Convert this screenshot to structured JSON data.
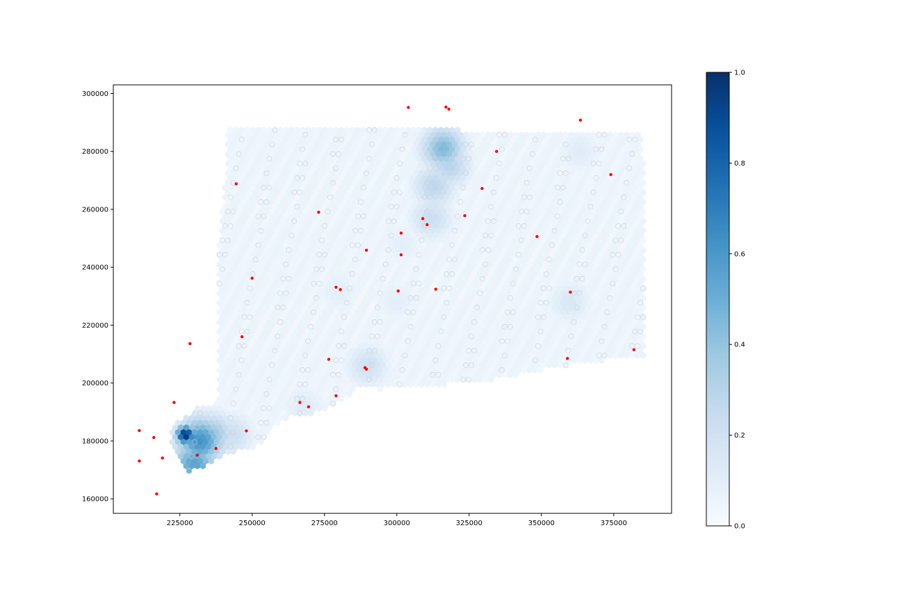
{
  "chart_data": {
    "type": "scatter",
    "title": "",
    "xlabel": "",
    "ylabel": "",
    "xlim": [
      202000,
      395000
    ],
    "ylim": [
      155000,
      303000
    ],
    "x_ticks": [
      225000,
      250000,
      275000,
      300000,
      325000,
      350000,
      375000
    ],
    "y_ticks": [
      160000,
      180000,
      200000,
      220000,
      240000,
      260000,
      280000,
      300000
    ],
    "grid": false,
    "legend": "none",
    "background_layer": {
      "type": "hexbin",
      "colormap": "Blues",
      "hot_spots": [
        {
          "x": 227000,
          "y": 182000,
          "value": 1.0
        },
        {
          "x": 232000,
          "y": 180000,
          "value": 0.62
        },
        {
          "x": 230000,
          "y": 172000,
          "value": 0.55
        },
        {
          "x": 236000,
          "y": 182000,
          "value": 0.4
        },
        {
          "x": 243000,
          "y": 182000,
          "value": 0.22
        },
        {
          "x": 316000,
          "y": 281000,
          "value": 0.45
        },
        {
          "x": 318000,
          "y": 275000,
          "value": 0.3
        },
        {
          "x": 313000,
          "y": 268000,
          "value": 0.28
        },
        {
          "x": 312000,
          "y": 257000,
          "value": 0.22
        },
        {
          "x": 290000,
          "y": 206000,
          "value": 0.2
        },
        {
          "x": 360000,
          "y": 228000,
          "value": 0.15
        },
        {
          "x": 363000,
          "y": 280000,
          "value": 0.12
        },
        {
          "x": 268000,
          "y": 192000,
          "value": 0.12
        },
        {
          "x": 300000,
          "y": 228000,
          "value": 0.1
        },
        {
          "x": 302000,
          "y": 248000,
          "value": 0.1
        },
        {
          "x": 280000,
          "y": 232000,
          "value": 0.1
        }
      ]
    },
    "series": [
      {
        "marker": "point",
        "color": "#ff0000",
        "points": [
          [
            304000,
            295200
          ],
          [
            317000,
            295300
          ],
          [
            318000,
            294600
          ],
          [
            363500,
            290800
          ],
          [
            334500,
            280000
          ],
          [
            374000,
            272000
          ],
          [
            244500,
            268800
          ],
          [
            329500,
            267200
          ],
          [
            273000,
            259000
          ],
          [
            323500,
            257800
          ],
          [
            309000,
            256800
          ],
          [
            310500,
            254700
          ],
          [
            301500,
            251800
          ],
          [
            348500,
            250600
          ],
          [
            289500,
            245900
          ],
          [
            301500,
            244300
          ],
          [
            250000,
            236200
          ],
          [
            279000,
            233100
          ],
          [
            280500,
            232300
          ],
          [
            313500,
            232400
          ],
          [
            300500,
            231800
          ],
          [
            360000,
            231400
          ],
          [
            246500,
            216000
          ],
          [
            228500,
            213600
          ],
          [
            382000,
            211500
          ],
          [
            276500,
            208200
          ],
          [
            359000,
            208500
          ],
          [
            289000,
            205300
          ],
          [
            289500,
            204800
          ],
          [
            279000,
            195600
          ],
          [
            223000,
            193300
          ],
          [
            266500,
            193300
          ],
          [
            269500,
            191800
          ],
          [
            211000,
            183600
          ],
          [
            248000,
            183500
          ],
          [
            216000,
            181200
          ],
          [
            237500,
            177400
          ],
          [
            219000,
            174100
          ],
          [
            231000,
            175100
          ],
          [
            211000,
            173100
          ],
          [
            217000,
            161700
          ]
        ]
      }
    ],
    "colorbar": {
      "colormap": "Blues",
      "min": 0.0,
      "max": 1.0,
      "ticks": [
        "0.0",
        "0.2",
        "0.4",
        "0.6",
        "0.8",
        "1.0"
      ]
    }
  }
}
